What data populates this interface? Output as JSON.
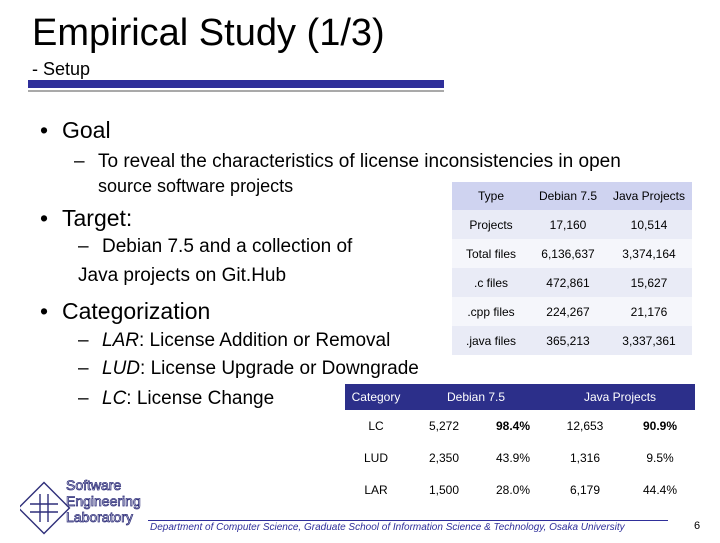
{
  "slide": {
    "title": "Empirical Study (1/3)",
    "subtitle": "- Setup",
    "bullets": {
      "goal": "Goal",
      "goal_sub": "To reveal the characteristics of license inconsistencies in open source software projects",
      "goal_sub_line1": "To reveal the characteristics of license inconsistencies in open",
      "goal_sub_line2": "source software projects",
      "target": "Target:",
      "target_sub_line1": "Debian 7.5 and a collection of",
      "target_sub_line2": "Java projects on Git.Hub",
      "categorization": "Categorization",
      "cat_items": [
        {
          "abbr": "LAR",
          "desc": ": License Addition or Removal"
        },
        {
          "abbr": "LUD",
          "desc": ": License Upgrade or Downgrade"
        },
        {
          "abbr": "LC",
          "desc": ": License Change"
        }
      ]
    },
    "bullet_symbol": "•",
    "dash_symbol": "–"
  },
  "table_target": {
    "headers": [
      "Type",
      "Debian 7.5",
      "Java Projects"
    ],
    "rows": [
      [
        "Projects",
        "17,160",
        "10,514"
      ],
      [
        "Total files",
        "6,136,637",
        "3,374,164"
      ],
      [
        ".c files",
        "472,861",
        "15,627"
      ],
      [
        ".cpp files",
        "224,267",
        "21,176"
      ],
      [
        ".java files",
        "365,213",
        "3,337,361"
      ]
    ]
  },
  "table_category": {
    "headers": [
      "Category",
      "Debian 7.5",
      "Java Projects"
    ],
    "rows": [
      [
        "LC",
        "5,272",
        "98.4%",
        "12,653",
        "90.9%"
      ],
      [
        "LUD",
        "2,350",
        "43.9%",
        "1,316",
        "9.5%"
      ],
      [
        "LAR",
        "1,500",
        "28.0%",
        "6,179",
        "44.4%"
      ]
    ]
  },
  "logo": {
    "line1": "Software",
    "line2": "Engineering",
    "line3": "Laboratory",
    "color": "#2f2f7a"
  },
  "footer": {
    "text": "Department of Computer Science, Graduate School of Information Science & Technology, Osaka University",
    "page_number": "6"
  },
  "colors": {
    "accent": "#2f2f9a",
    "header_dark": "#2c2f8a",
    "header_light": "#cfd3f0"
  }
}
